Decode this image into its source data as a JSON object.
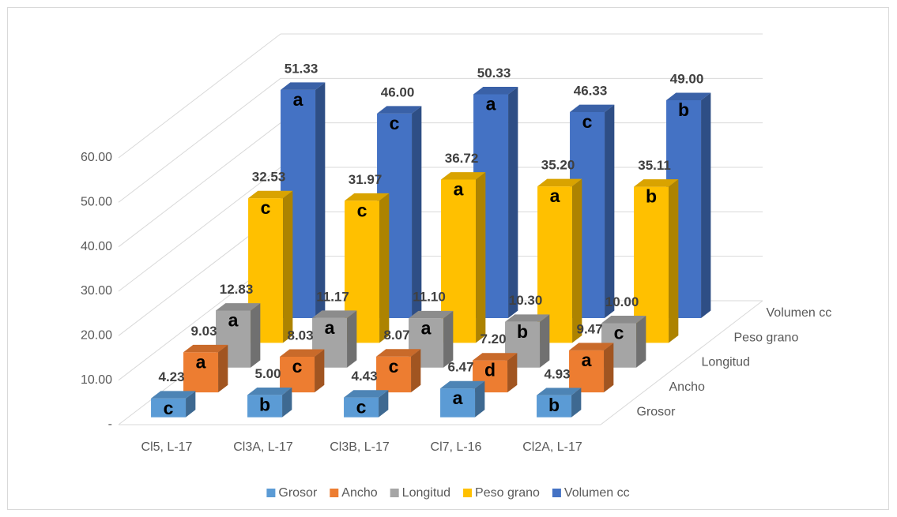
{
  "chart_data": {
    "type": "bar3d",
    "categories": [
      "Cl5, L-17",
      "Cl3A, L-17",
      "Cl3B, L-17",
      "Cl7, L-16",
      "Cl2A, L-17"
    ],
    "series": [
      {
        "name": "Grosor",
        "color": "#5b9bd5",
        "values": [
          4.23,
          5.0,
          4.43,
          6.47,
          4.93
        ],
        "value_labels": [
          "4.23",
          "5.00",
          "4.43",
          "6.47",
          "4.93"
        ],
        "letters": [
          "c",
          "b",
          "c",
          "a",
          "b"
        ]
      },
      {
        "name": "Ancho",
        "color": "#ed7d31",
        "values": [
          9.03,
          8.03,
          8.07,
          7.2,
          9.47
        ],
        "value_labels": [
          "9.03",
          "8.03",
          "8.07",
          "7.20",
          "9.47"
        ],
        "letters": [
          "a",
          "c",
          "c",
          "d",
          "a"
        ]
      },
      {
        "name": "Longitud",
        "color": "#a5a5a5",
        "values": [
          12.83,
          11.17,
          11.1,
          10.3,
          10.0
        ],
        "value_labels": [
          "12.83",
          "11.17",
          "11.10",
          "10.30",
          "10.00"
        ],
        "letters": [
          "a",
          "a",
          "a",
          "b",
          "c"
        ]
      },
      {
        "name": "Peso grano",
        "color": "#ffc000",
        "values": [
          32.53,
          31.97,
          36.72,
          35.2,
          35.11
        ],
        "value_labels": [
          "32.53",
          "31.97",
          "36.72",
          "35.20",
          "35.11"
        ],
        "letters": [
          "c",
          "c",
          "a",
          "a",
          "b"
        ]
      },
      {
        "name": "Volumen cc",
        "color": "#4472c4",
        "values": [
          51.33,
          46.0,
          50.33,
          46.33,
          49.0
        ],
        "value_labels": [
          "51.33",
          "46.00",
          "50.33",
          "46.33",
          "49.00"
        ],
        "letters": [
          "a",
          "c",
          "a",
          "c",
          "b"
        ]
      }
    ],
    "ylim": [
      0,
      60
    ],
    "yticks": [
      {
        "value": 0,
        "label": "-"
      },
      {
        "value": 10,
        "label": "10.00"
      },
      {
        "value": 20,
        "label": "20.00"
      },
      {
        "value": 30,
        "label": "30.00"
      },
      {
        "value": 40,
        "label": "40.00"
      },
      {
        "value": 50,
        "label": "50.00"
      },
      {
        "value": 60,
        "label": "60.00"
      }
    ],
    "grid": true,
    "legend": "bottom"
  }
}
